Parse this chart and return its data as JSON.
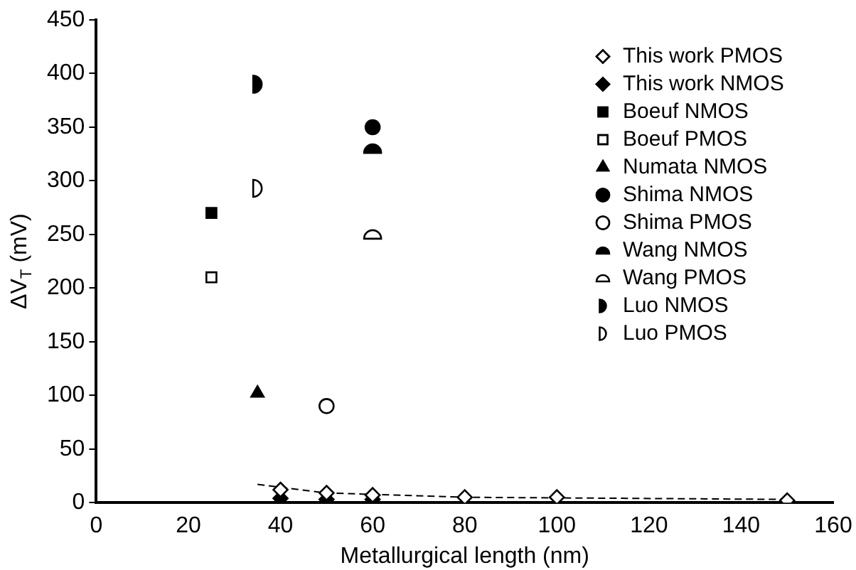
{
  "chart_data": {
    "type": "scatter",
    "xlabel": "Metallurgical length (nm)",
    "ylabel": "ΔV$_{T}$ (mV)",
    "xlim": [
      0,
      160
    ],
    "xticks": [
      0,
      20,
      40,
      60,
      80,
      100,
      120,
      140,
      160
    ],
    "ylim": [
      0,
      450
    ],
    "yticks": [
      0,
      50,
      100,
      150,
      200,
      250,
      300,
      350,
      400,
      450
    ],
    "grid": false,
    "legend": "top right",
    "series": [
      {
        "name": "This work PMOS",
        "color": "#ffffff",
        "marker": "diamond",
        "x": [
          40,
          50,
          60,
          80,
          100,
          150
        ],
        "values": [
          12,
          9,
          7,
          5,
          5,
          2
        ]
      },
      {
        "name": "This work NMOS",
        "color": "#000000",
        "marker": "diamond",
        "x": [
          40,
          50,
          60
        ],
        "values": [
          4,
          3,
          3
        ]
      },
      {
        "name": "Boeuf NMOS",
        "color": "#000000",
        "marker": "square",
        "x": [
          25
        ],
        "values": [
          270
        ]
      },
      {
        "name": "Boeuf PMOS",
        "color": "#ffffff",
        "marker": "square",
        "x": [
          25
        ],
        "values": [
          210
        ]
      },
      {
        "name": "Numata NMOS",
        "color": "#000000",
        "marker": "triangle",
        "x": [
          35
        ],
        "values": [
          102
        ]
      },
      {
        "name": "Shima NMOS",
        "color": "#000000",
        "marker": "circle",
        "x": [
          60
        ],
        "values": [
          350
        ]
      },
      {
        "name": "Shima PMOS",
        "color": "#ffffff",
        "marker": "circle",
        "x": [
          50
        ],
        "values": [
          90
        ]
      },
      {
        "name": "Wang NMOS",
        "color": "#000000",
        "marker": "half-circle-top",
        "x": [
          60
        ],
        "values": [
          330
        ]
      },
      {
        "name": "Wang PMOS",
        "color": "#ffffff",
        "marker": "half-circle-top",
        "x": [
          60
        ],
        "values": [
          250
        ]
      },
      {
        "name": "Luo NMOS",
        "color": "#000000",
        "marker": "half-circle-right",
        "x": [
          35
        ],
        "values": [
          390
        ]
      },
      {
        "name": "Luo PMOS",
        "color": "#ffffff",
        "marker": "half-circle-right",
        "x": [
          35
        ],
        "values": [
          293
        ]
      },
      {
        "type": "line",
        "color": "#000000",
        "line_style": "dashed",
        "marker": "none",
        "x": [
          35,
          50,
          80,
          150
        ],
        "values": [
          17,
          9,
          5,
          3
        ]
      }
    ]
  }
}
